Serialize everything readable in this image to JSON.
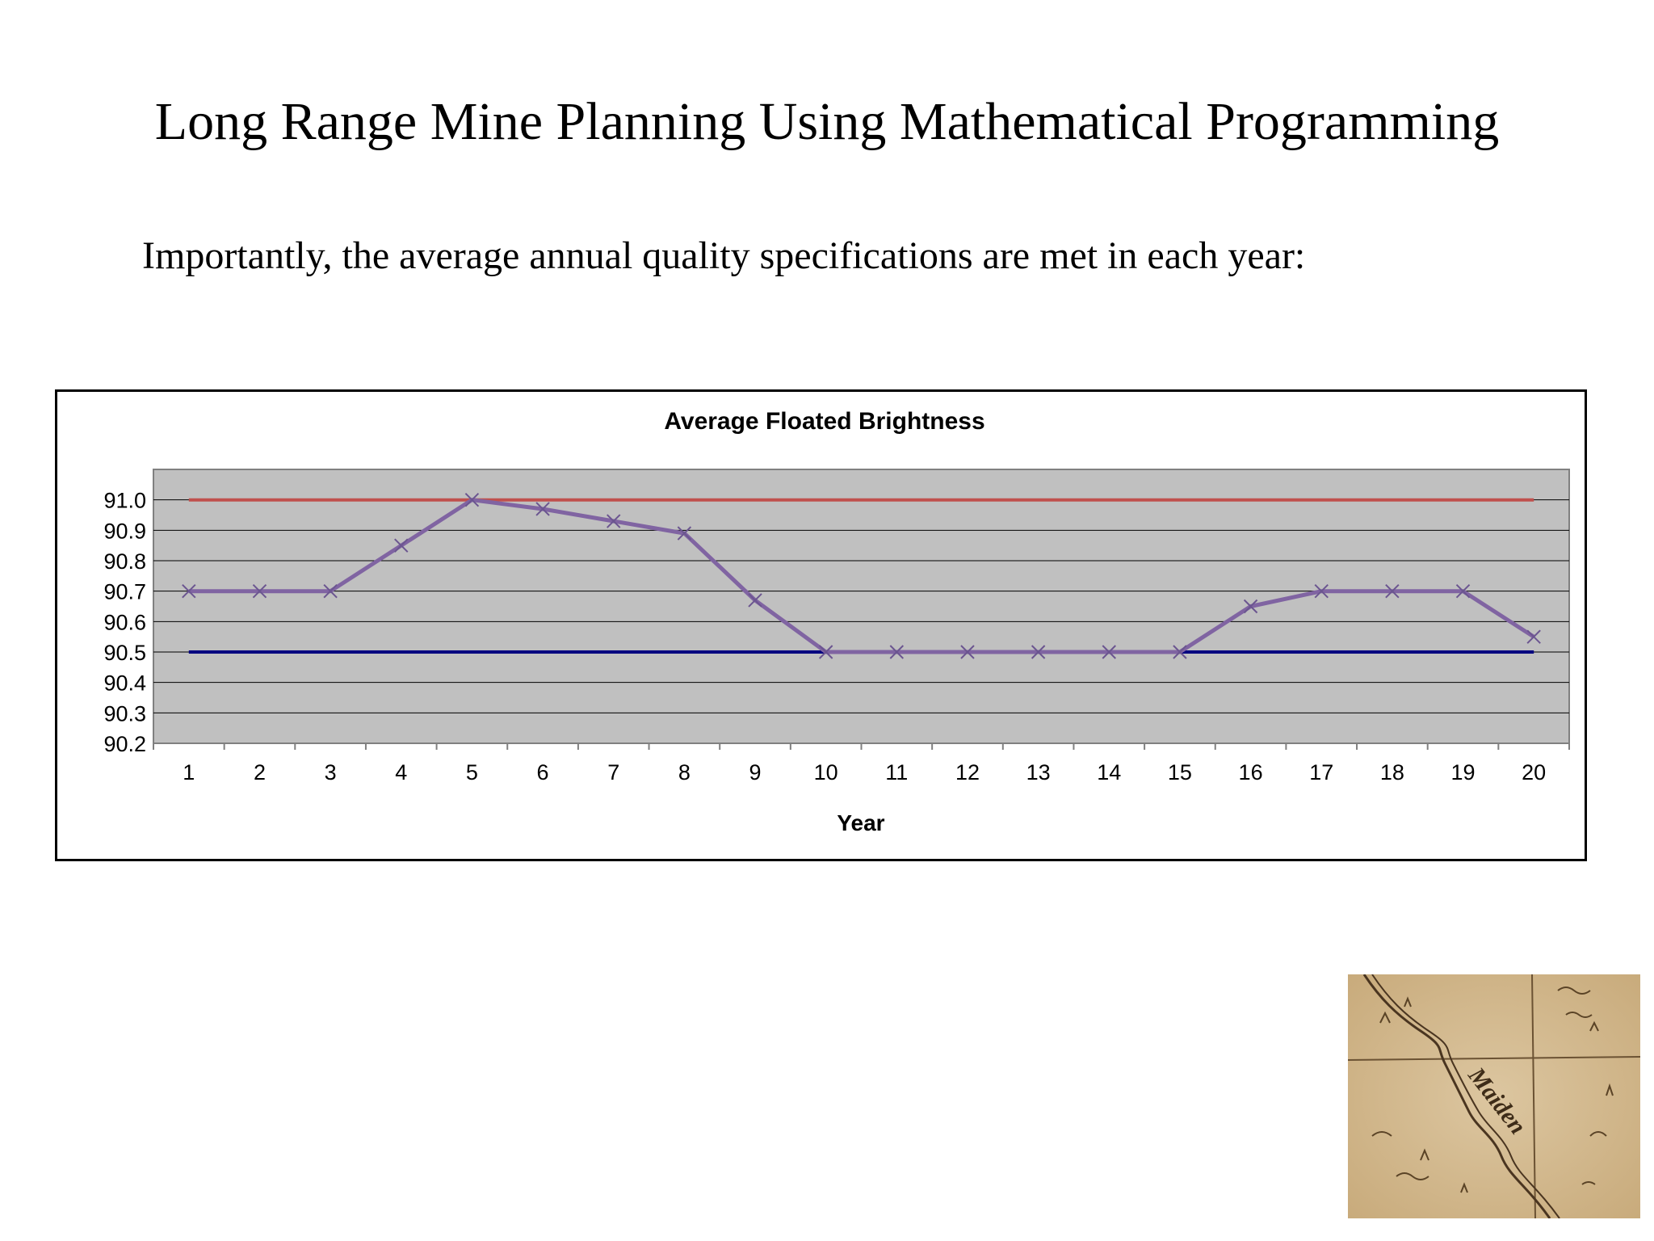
{
  "slide": {
    "title": "Long Range Mine Planning Using Mathematical Programming",
    "subtitle": "Importantly, the average annual quality specifications are met in each year:"
  },
  "colors": {
    "plot_background": "#c0c0c0",
    "gridline": "#000000",
    "upper_limit": "#c0504d",
    "lower_limit": "#000080",
    "brightness": "#8064a2",
    "map_paper": "#d6bd94",
    "map_ink": "#5a4326"
  },
  "chart_data": {
    "type": "line",
    "title": "Average Floated Brightness",
    "xlabel": "Year",
    "ylabel": "",
    "categories": [
      "1",
      "2",
      "3",
      "4",
      "5",
      "6",
      "7",
      "8",
      "9",
      "10",
      "11",
      "12",
      "13",
      "14",
      "15",
      "16",
      "17",
      "18",
      "19",
      "20"
    ],
    "ylim": [
      90.2,
      91.1
    ],
    "yticks": [
      "91.0",
      "90.9",
      "90.8",
      "90.7",
      "90.6",
      "90.5",
      "90.4",
      "90.3",
      "90.2"
    ],
    "ytick_values": [
      91.0,
      90.9,
      90.8,
      90.7,
      90.6,
      90.5,
      90.4,
      90.3,
      90.2
    ],
    "grid": true,
    "legend": "none",
    "series": [
      {
        "key": "upper",
        "color": "#c0504d",
        "marker": "none",
        "values": [
          91.0,
          91.0,
          91.0,
          91.0,
          91.0,
          91.0,
          91.0,
          91.0,
          91.0,
          91.0,
          91.0,
          91.0,
          91.0,
          91.0,
          91.0,
          91.0,
          91.0,
          91.0,
          91.0,
          91.0
        ]
      },
      {
        "key": "lower",
        "color": "#000080",
        "marker": "none",
        "values": [
          90.5,
          90.5,
          90.5,
          90.5,
          90.5,
          90.5,
          90.5,
          90.5,
          90.5,
          90.5,
          90.5,
          90.5,
          90.5,
          90.5,
          90.5,
          90.5,
          90.5,
          90.5,
          90.5,
          90.5
        ]
      },
      {
        "key": "brightness",
        "color": "#8064a2",
        "marker": "x",
        "values": [
          90.7,
          90.7,
          90.7,
          90.85,
          91.0,
          90.97,
          90.93,
          90.89,
          90.67,
          90.5,
          90.5,
          90.5,
          90.5,
          90.5,
          90.5,
          90.65,
          90.7,
          90.7,
          90.7,
          90.55
        ]
      }
    ]
  },
  "map_thumbnail": {
    "label": "Maiden",
    "icon": "historic-map-image"
  }
}
